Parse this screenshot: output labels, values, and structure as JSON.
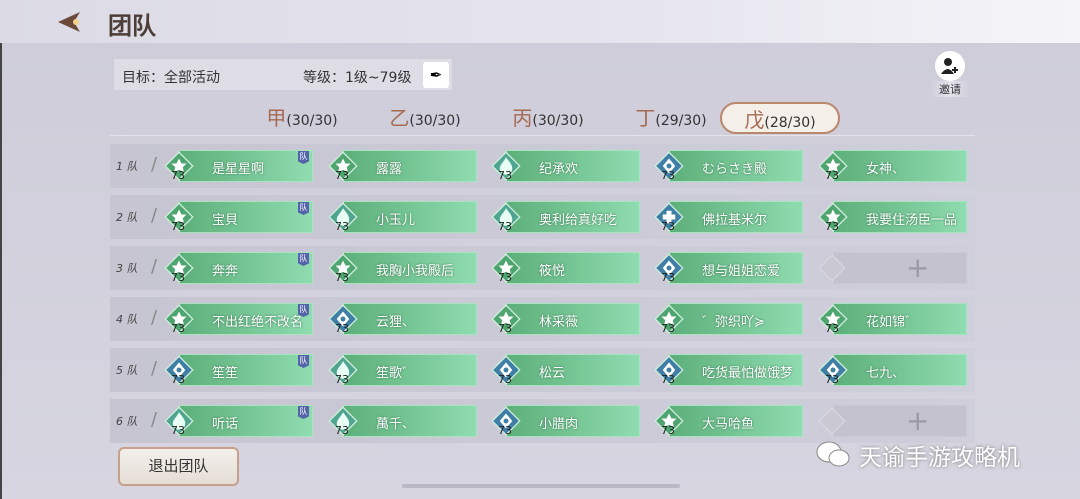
{
  "header": {
    "title": "团队"
  },
  "filter": {
    "goal": "目标：全部活动",
    "level": "等级：1级~79级"
  },
  "invite": {
    "label": "邀请"
  },
  "tabs": [
    {
      "char": "甲",
      "count": "(30/30)"
    },
    {
      "char": "乙",
      "count": "(30/30)"
    },
    {
      "char": "丙",
      "count": "(30/30)"
    },
    {
      "char": "丁",
      "count": "(29/30)"
    },
    {
      "char": "戊",
      "count": "(28/30)",
      "active": true
    }
  ],
  "leader_badge": "队",
  "teams": [
    {
      "label": "1 队",
      "members": [
        {
          "name": "是星星啊",
          "class": "flower",
          "level": "73",
          "leader": true
        },
        {
          "name": "露露",
          "class": "flower",
          "level": "73"
        },
        {
          "name": "纪承欢",
          "class": "flame",
          "level": "73"
        },
        {
          "name": "むらさき殿",
          "class": "diamond",
          "level": "73"
        },
        {
          "name": "女神、",
          "class": "flower",
          "level": "73"
        }
      ]
    },
    {
      "label": "2 队",
      "members": [
        {
          "name": "宝貝",
          "class": "flower",
          "level": "73",
          "leader": true
        },
        {
          "name": "小玉儿",
          "class": "flame",
          "level": "73"
        },
        {
          "name": "奥利给真好吃",
          "class": "flame",
          "level": "73"
        },
        {
          "name": "佛拉基米尔",
          "class": "cross",
          "level": "73"
        },
        {
          "name": "我要住汤臣一品",
          "class": "flower",
          "level": "73"
        }
      ]
    },
    {
      "label": "3 队",
      "members": [
        {
          "name": "奔奔",
          "class": "flower",
          "level": "73",
          "leader": true
        },
        {
          "name": "我胸小我殿后",
          "class": "flower",
          "level": "73"
        },
        {
          "name": "筱悦",
          "class": "flower",
          "level": "73"
        },
        {
          "name": "想与姐姐恋爱",
          "class": "diamond",
          "level": "73"
        },
        null
      ]
    },
    {
      "label": "4 队",
      "members": [
        {
          "name": "不出红绝不改名",
          "class": "flower",
          "level": "73",
          "leader": true
        },
        {
          "name": "云狸、",
          "class": "diamond",
          "level": "73"
        },
        {
          "name": "林采薇",
          "class": "flower",
          "level": "73"
        },
        {
          "name": "゛弥织吖≽",
          "class": "flower",
          "level": "73"
        },
        {
          "name": "花如锦゛",
          "class": "flower",
          "level": "73"
        }
      ]
    },
    {
      "label": "5 队",
      "members": [
        {
          "name": "笙笙",
          "class": "diamond",
          "level": "73",
          "leader": true
        },
        {
          "name": "笙歌゛",
          "class": "flame",
          "level": "73"
        },
        {
          "name": "松云",
          "class": "diamond",
          "level": "73"
        },
        {
          "name": "吃货最怕做饿梦",
          "class": "diamond",
          "level": "73"
        },
        {
          "name": "七九、",
          "class": "diamond",
          "level": "73"
        }
      ]
    },
    {
      "label": "6 队",
      "members": [
        {
          "name": "听话",
          "class": "flame",
          "level": "73",
          "leader": true
        },
        {
          "name": "萬千、",
          "class": "flame",
          "level": "73"
        },
        {
          "name": "小腊肉",
          "class": "diamond",
          "level": "73"
        },
        {
          "name": "大马哈鱼",
          "class": "flower",
          "level": "73"
        },
        null
      ]
    }
  ],
  "quit_label": "退出团队",
  "watermark": "天谕手游攻略机",
  "colors": {
    "card": "#6dbf8a",
    "accent": "#a66a52"
  }
}
